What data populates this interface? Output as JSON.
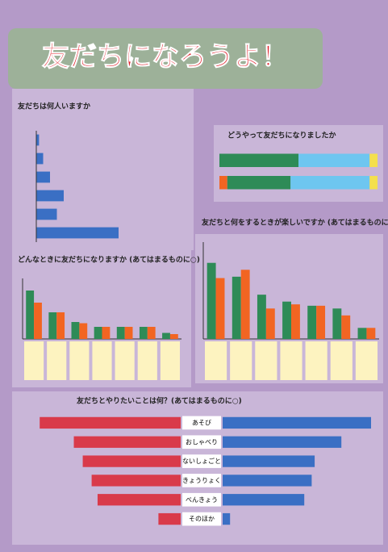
{
  "poster": {
    "title": "友だちになろうよ！"
  },
  "chart_data": [
    {
      "type": "hbar",
      "title": "友だちは何人いますか",
      "categories": [
        null,
        null,
        null,
        null,
        null,
        null
      ],
      "values": [
        2,
        5,
        10,
        20,
        15,
        60
      ],
      "color": "#3a6fc4",
      "xlim": [
        0,
        100
      ]
    },
    {
      "type": "stacked_hbar",
      "title": "どうやって友だちになりましたか",
      "categories": [
        null,
        null
      ],
      "series": [
        {
          "color": "#f26522",
          "values": [
            0,
            5
          ]
        },
        {
          "color": "#2e8b57",
          "values": [
            50,
            40
          ]
        },
        {
          "color": "#6ec6f0",
          "values": [
            45,
            50
          ]
        },
        {
          "color": "#f4e04d",
          "values": [
            5,
            5
          ]
        }
      ],
      "xlim": [
        0,
        100
      ]
    },
    {
      "type": "grouped_bar",
      "title": "どんなときに友だちになりますか (あてはまるものに○)",
      "categories": [
        null,
        null,
        null,
        null,
        null,
        null,
        null
      ],
      "series": [
        {
          "color": "#2e8b57",
          "values": [
            40,
            22,
            14,
            10,
            10,
            10,
            5
          ]
        },
        {
          "color": "#f26522",
          "values": [
            30,
            22,
            13,
            10,
            10,
            10,
            4
          ]
        }
      ],
      "ylim": [
        0,
        50
      ]
    },
    {
      "type": "grouped_bar",
      "title": "友だちと何をするときが楽しいですか (あてはまるものに○)",
      "categories": [
        null,
        null,
        null,
        null,
        null,
        null,
        null
      ],
      "series": [
        {
          "color": "#2e8b57",
          "values": [
            55,
            45,
            32,
            27,
            24,
            22,
            8
          ]
        },
        {
          "color": "#f26522",
          "values": [
            44,
            50,
            22,
            25,
            24,
            17,
            8
          ]
        }
      ],
      "ylim": [
        0,
        70
      ]
    },
    {
      "type": "diverging_hbar",
      "title": "友だちとやりたいことは何？(あてはまるものに○)",
      "categories": [
        "あそび",
        "おしゃべり",
        "ないしょごと",
        "きょうりょく",
        "べんきょう",
        "そのほか"
      ],
      "series": [
        {
          "color": "#d93a4a",
          "values": [
            95,
            72,
            66,
            60,
            56,
            15
          ]
        },
        {
          "color": "#3a6fc4",
          "values": [
            100,
            80,
            62,
            60,
            55,
            5
          ]
        }
      ],
      "xlim": [
        0,
        100
      ]
    }
  ]
}
